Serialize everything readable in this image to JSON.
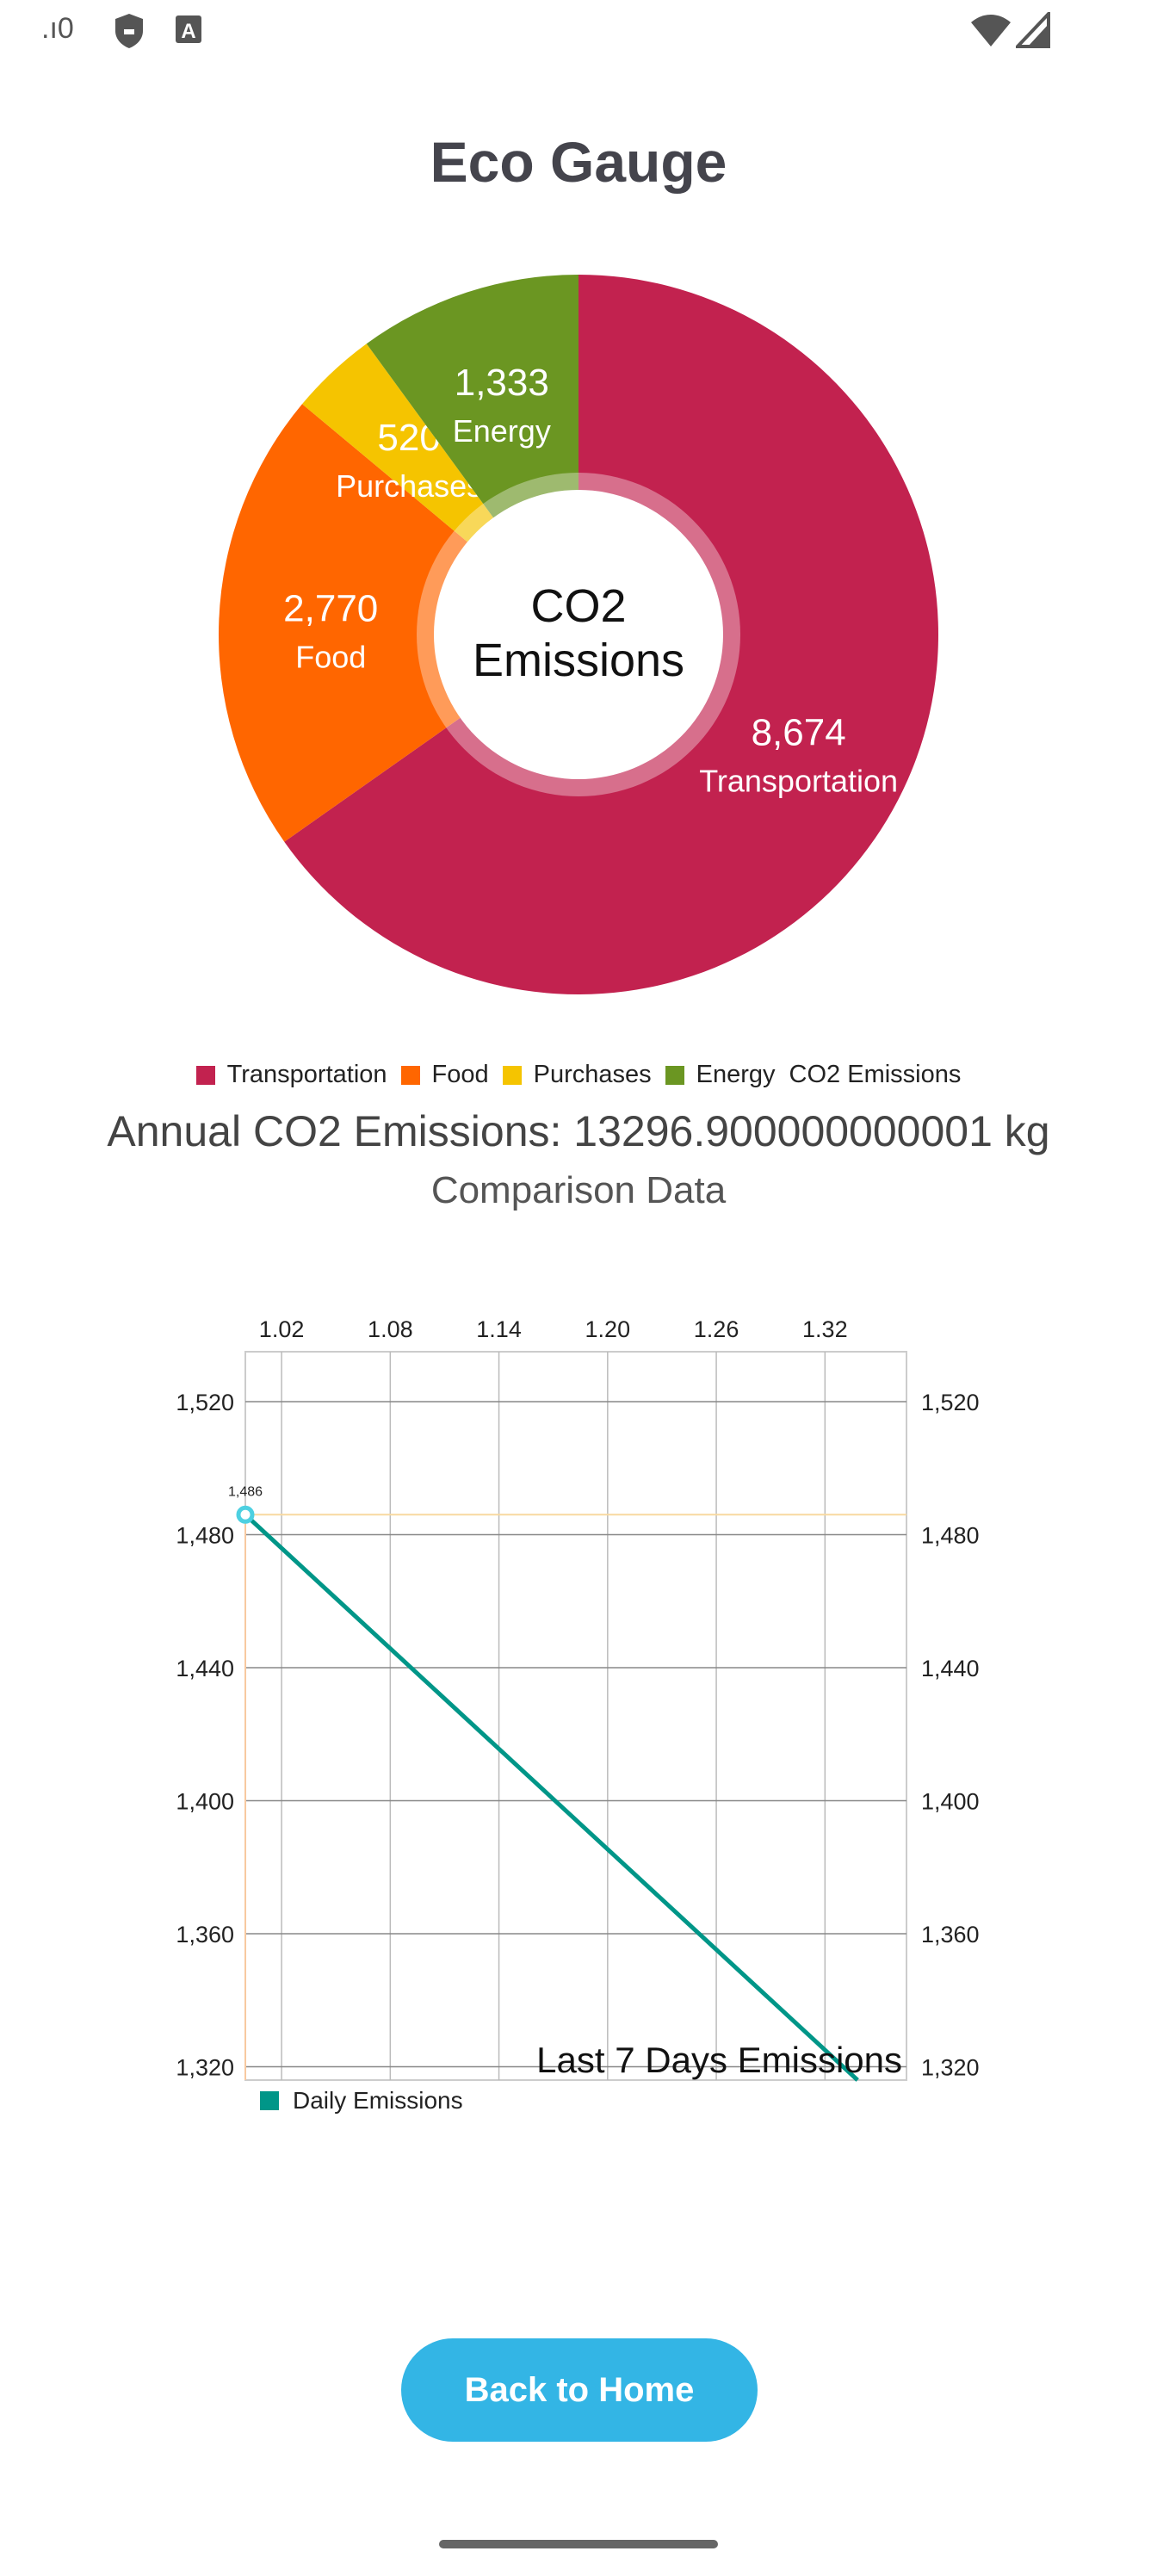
{
  "status_bar": {
    "time_text": ".ı0",
    "icons": [
      "shield-icon",
      "font-a-icon",
      "wifi-icon",
      "cell-signal-icon"
    ]
  },
  "app": {
    "title": "Eco Gauge"
  },
  "donut": {
    "center_line1": "CO2",
    "center_line2": "Emissions",
    "slices": [
      {
        "label": "Transportation",
        "value": 8674,
        "display": "8,674",
        "color": "#c2224f"
      },
      {
        "label": "Food",
        "value": 2770,
        "display": "2,770",
        "color": "#ff6600"
      },
      {
        "label": "Purchases",
        "value": 520,
        "display": "520",
        "color": "#f5c400"
      },
      {
        "label": "Energy",
        "value": 1333,
        "display": "1,333",
        "color": "#6b9622"
      }
    ]
  },
  "legend": {
    "items": [
      {
        "label": "Transportation",
        "color": "#c2224f"
      },
      {
        "label": "Food",
        "color": "#ff6600"
      },
      {
        "label": "Purchases",
        "color": "#f5c400"
      },
      {
        "label": "Energy",
        "color": "#6b9622"
      }
    ],
    "trailing": "CO2 Emissions"
  },
  "annual_text": "Annual CO2 Emissions: 13296.900000000001 kg",
  "comparison_label": "Comparison Data",
  "chart_data": {
    "type": "line",
    "description_text": "Last 7 Days Emissions",
    "x_ticks": [
      "1.02",
      "1.08",
      "1.14",
      "1.20",
      "1.26",
      "1.32"
    ],
    "x_tick_values": [
      1.02,
      1.08,
      1.14,
      1.2,
      1.26,
      1.32
    ],
    "y_ticks": [
      "1,520",
      "1,480",
      "1,440",
      "1,400",
      "1,360",
      "1,320"
    ],
    "y_tick_values": [
      1520,
      1480,
      1440,
      1400,
      1360,
      1320
    ],
    "xlim": [
      1.0,
      1.365
    ],
    "ylim": [
      1316,
      1535
    ],
    "series": [
      {
        "name": "Daily Emissions",
        "color": "#009688",
        "x": [
          1.0,
          1.338
        ],
        "y": [
          1486,
          1316
        ]
      }
    ],
    "highlight": {
      "x": 1.0,
      "y": 1486,
      "label": "1,486"
    },
    "grid": true,
    "legend_position": "bottom-left"
  },
  "buttons": {
    "back_label": "Back to Home"
  }
}
